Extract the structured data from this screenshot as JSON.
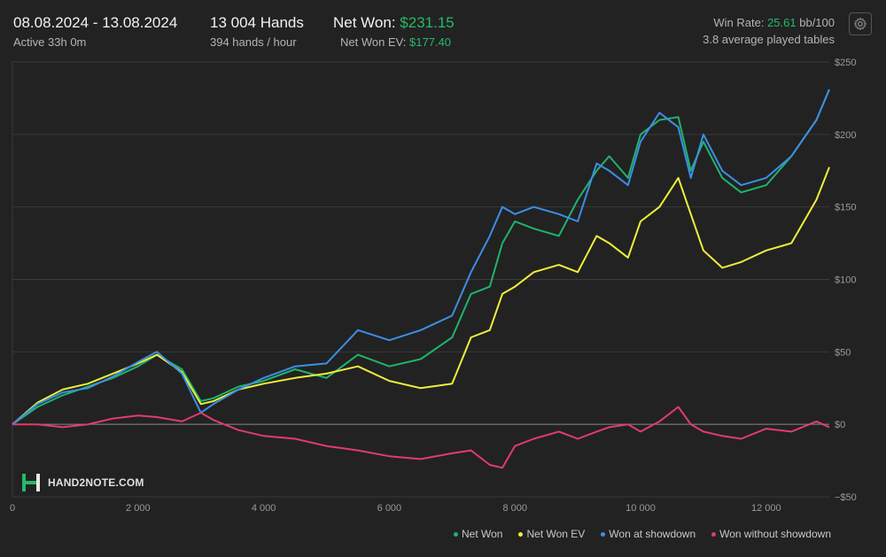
{
  "header": {
    "date_range": "08.08.2024 - 13.08.2024",
    "active": "Active 33h 0m",
    "hands": "13 004 Hands",
    "hands_per_hour": "394 hands / hour",
    "net_won_label": "Net Won: ",
    "net_won_value": "$231.15",
    "net_won_ev_label": "Net Won  EV: ",
    "net_won_ev_value": "$177.40",
    "win_rate_label": "Win Rate: ",
    "win_rate_value": "25.61",
    "win_rate_unit": " bb/100",
    "avg_tables": "3.8 average played tables"
  },
  "brand": {
    "name": "HAND2NOTE.COM"
  },
  "icons": {
    "settings": "gear-icon",
    "logo": "hand2note-logo-icon"
  },
  "colors": {
    "background": "#222222",
    "grid": "#3a3a3a",
    "net_won": "#1fb46a",
    "net_won_ev": "#f0ee3a",
    "won_at_showdown": "#3c8ee6",
    "won_without_showdown": "#e03c6e",
    "accent_green": "#27b86a"
  },
  "chart_data": {
    "type": "line",
    "xlim": [
      0,
      13004
    ],
    "ylim": [
      -50,
      250
    ],
    "x_ticks": [
      0,
      2000,
      4000,
      6000,
      8000,
      10000,
      12000
    ],
    "x_tick_labels": [
      "0",
      "2 000",
      "4 000",
      "6 000",
      "8 000",
      "10 000",
      "12 000"
    ],
    "y_ticks": [
      250,
      200,
      150,
      100,
      50,
      0,
      -50
    ],
    "y_tick_labels": [
      "$250",
      "$200",
      "$150",
      "$100",
      "$50",
      "$0",
      "−$50"
    ],
    "grid": true,
    "legend_position": "bottom-right",
    "series": [
      {
        "name": "Net Won",
        "color": "#1fb46a",
        "x": [
          0,
          400,
          800,
          1200,
          1600,
          2000,
          2300,
          2700,
          3000,
          3200,
          3600,
          4000,
          4500,
          5000,
          5500,
          6000,
          6500,
          7000,
          7300,
          7600,
          7800,
          8000,
          8300,
          8700,
          9000,
          9300,
          9500,
          9800,
          10000,
          10300,
          10600,
          10800,
          11000,
          11300,
          11600,
          12000,
          12400,
          12800,
          13004
        ],
        "values": [
          0,
          12,
          20,
          26,
          32,
          40,
          48,
          38,
          16,
          18,
          26,
          30,
          38,
          32,
          48,
          40,
          45,
          60,
          90,
          95,
          125,
          140,
          135,
          130,
          155,
          175,
          185,
          170,
          200,
          210,
          212,
          175,
          195,
          170,
          160,
          165,
          185,
          210,
          231.15
        ]
      },
      {
        "name": "Net Won  EV",
        "color": "#f0ee3a",
        "x": [
          0,
          400,
          800,
          1200,
          1600,
          2000,
          2300,
          2700,
          3000,
          3200,
          3600,
          4000,
          4500,
          5000,
          5500,
          6000,
          6500,
          7000,
          7300,
          7600,
          7800,
          8000,
          8300,
          8700,
          9000,
          9300,
          9500,
          9800,
          10000,
          10300,
          10600,
          10800,
          11000,
          11300,
          11600,
          12000,
          12400,
          12800,
          13004
        ],
        "values": [
          0,
          15,
          24,
          28,
          35,
          42,
          48,
          36,
          14,
          16,
          24,
          28,
          32,
          35,
          40,
          30,
          25,
          28,
          60,
          65,
          90,
          95,
          105,
          110,
          105,
          130,
          125,
          115,
          140,
          150,
          170,
          145,
          120,
          108,
          112,
          120,
          125,
          155,
          177.4
        ]
      },
      {
        "name": "Won at showdown",
        "color": "#3c8ee6",
        "x": [
          0,
          400,
          800,
          1200,
          1600,
          2000,
          2300,
          2700,
          3000,
          3200,
          3600,
          4000,
          4500,
          5000,
          5500,
          6000,
          6500,
          7000,
          7300,
          7600,
          7800,
          8000,
          8300,
          8700,
          9000,
          9300,
          9500,
          9800,
          10000,
          10300,
          10600,
          10800,
          11000,
          11300,
          11600,
          12000,
          12400,
          12800,
          13004
        ],
        "values": [
          0,
          14,
          22,
          25,
          33,
          43,
          50,
          35,
          8,
          14,
          24,
          32,
          40,
          42,
          65,
          58,
          65,
          75,
          105,
          130,
          150,
          145,
          150,
          145,
          140,
          180,
          175,
          165,
          195,
          215,
          205,
          170,
          200,
          175,
          165,
          170,
          185,
          210,
          231
        ]
      },
      {
        "name": "Won without showdown",
        "color": "#e03c6e",
        "x": [
          0,
          400,
          800,
          1200,
          1600,
          2000,
          2300,
          2700,
          3000,
          3200,
          3600,
          4000,
          4500,
          5000,
          5500,
          6000,
          6500,
          7000,
          7300,
          7600,
          7800,
          8000,
          8300,
          8700,
          9000,
          9300,
          9500,
          9800,
          10000,
          10300,
          10600,
          10800,
          11000,
          11300,
          11600,
          12000,
          12400,
          12800,
          13004
        ],
        "values": [
          0,
          0,
          -2,
          0,
          4,
          6,
          5,
          2,
          8,
          3,
          -4,
          -8,
          -10,
          -15,
          -18,
          -22,
          -24,
          -20,
          -18,
          -28,
          -30,
          -15,
          -10,
          -5,
          -10,
          -5,
          -2,
          0,
          -5,
          2,
          12,
          0,
          -5,
          -8,
          -10,
          -3,
          -5,
          2,
          -2
        ]
      }
    ]
  }
}
